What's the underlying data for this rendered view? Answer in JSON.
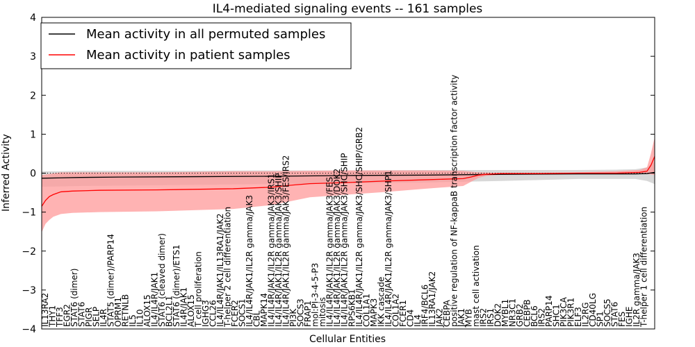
{
  "chart_data": {
    "type": "line",
    "title": "IL4-mediated signaling events -- 161 samples",
    "xlabel": "Cellular Entities",
    "ylabel": "Inferred Activity",
    "ylim": [
      -4,
      4
    ],
    "yticks": [
      -4,
      -3,
      -2,
      -1,
      0,
      1,
      2,
      3,
      4
    ],
    "legend": {
      "position": "top-left",
      "entries": [
        {
          "label": "Mean activity in all permuted samples",
          "color": "#000000"
        },
        {
          "label": "Mean activity in patient samples",
          "color": "#ff0000"
        }
      ]
    },
    "colors": {
      "permuted_line": "#000000",
      "permuted_band": "#c8c8c8",
      "patient_line": "#ff0000",
      "patient_band": "#ff9999",
      "zero_line": "#000000"
    },
    "n_points": 161,
    "category_labels": [
      "IL13RA2",
      "THY1",
      "TFF3",
      "EGR2",
      "STAT6 (dimer)",
      "STAT6",
      "PIGR",
      "SELP",
      "IL4R",
      "STAT5 (dimer)/PARP14",
      "OPRM1",
      "RETNLB",
      "IL5",
      "IL10",
      "ALOX15",
      "IL4/IL4R/JAK1",
      "STAT6 (cleaved dimer)",
      "BCL2L1",
      "STAT6 (dimer)/ETS1",
      "IL4R/JAK1",
      "ALOX15",
      "T cell proliferation",
      "IGHG3",
      "CCL26",
      "IL4/IL4R/JAK1/IL13RA1/JAK2",
      "T-helper 2 cell differentiation",
      "FCER2",
      "SOCS1",
      "IL4/IL4R/JAK1/IL2R gamma/JAK3",
      "CBL",
      "MAPK14",
      "IL4/IL4R/JAK1/IL2R gamma/JAK3/IRS1",
      "IL4/IL4R/JAK1/IL2R gamma/JAK3/SHIP",
      "IL4/IL4R/JAK1/IL2R gamma/JAK3/FES/IRS2",
      "PI3K",
      "SOCS3",
      "FRAP1",
      "mol:PI-3-4-5-P3",
      "mitosis",
      "IL4/IL4R/JAK1/IL2R gamma/JAK3/FES",
      "IL4/IL4R/JAK1/IL2R gamma/JAK3/DOK2",
      "IL4/IL4R/JAK1/IL2R gamma/JAK3/SHC/SHIP",
      "RPS6KB1",
      "IL4/IL4R/JAK1/IL2R gamma/JAK3/SHC/SHIP/GRB2",
      "COL1A1",
      "MAPK3",
      "IKK cascade",
      "IL4/IL4R/JAK1/IL2R gamma/JAK3/SHP1",
      "COL1A2",
      "FCER1",
      "CD4",
      "IL4",
      "IRF4/BCL6",
      "IL13RA1/JAK2",
      "JAK2",
      "CEBPA",
      "positive regulation of NF-kappaB transcription factor activity",
      "JAK1",
      "MYB",
      "mast cell activation",
      "IRS2",
      "IRS1",
      "DOK2",
      "MYBL1",
      "NR3C1",
      "GRB2",
      "CEBPB",
      "BCL6",
      "IRS2",
      "PARP14",
      "SHC1",
      "PIK3CA",
      "PIK3R1",
      "ELF3",
      "IL2RG",
      "CD40LG",
      "SP1",
      "SOCS5",
      "STAT6",
      "FES",
      "IGHE",
      "IL2R gamma/JAK3",
      "T-helper 1 cell differentiation"
    ],
    "series": [
      {
        "name": "Mean activity in all permuted samples",
        "mean": {
          "x": [
            0,
            5,
            10,
            20,
            40,
            60,
            80,
            100,
            120,
            140,
            150,
            155,
            158,
            160
          ],
          "y": [
            -0.13,
            -0.12,
            -0.11,
            -0.1,
            -0.09,
            -0.08,
            -0.06,
            -0.05,
            -0.03,
            -0.02,
            -0.02,
            -0.02,
            -0.01,
            0.02
          ]
        },
        "upper": {
          "x": [
            0,
            5,
            10,
            20,
            40,
            60,
            80,
            100,
            120,
            140,
            150,
            155,
            158,
            160
          ],
          "y": [
            0.05,
            0.05,
            0.06,
            0.06,
            0.06,
            0.07,
            0.07,
            0.08,
            0.08,
            0.08,
            0.09,
            0.1,
            0.15,
            0.3
          ]
        },
        "lower": {
          "x": [
            0,
            5,
            10,
            20,
            40,
            60,
            80,
            100,
            120,
            140,
            150,
            155,
            158,
            160
          ],
          "y": [
            -0.35,
            -0.34,
            -0.33,
            -0.32,
            -0.3,
            -0.28,
            -0.26,
            -0.24,
            -0.2,
            -0.15,
            -0.15,
            -0.15,
            -0.2,
            -0.28
          ]
        }
      },
      {
        "name": "Mean activity in patient samples",
        "mean": {
          "x": [
            0,
            1,
            2,
            3,
            5,
            8,
            15,
            30,
            50,
            60,
            65,
            70,
            80,
            90,
            100,
            110,
            112,
            114,
            116,
            118,
            120,
            130,
            140,
            150,
            156,
            158,
            159,
            160
          ],
          "y": [
            -0.85,
            -0.7,
            -0.6,
            -0.55,
            -0.48,
            -0.46,
            -0.44,
            -0.43,
            -0.4,
            -0.36,
            -0.31,
            -0.27,
            -0.24,
            -0.2,
            -0.17,
            -0.14,
            -0.1,
            -0.05,
            -0.03,
            -0.02,
            -0.01,
            -0.01,
            0.0,
            0.0,
            0.02,
            0.05,
            0.2,
            0.43
          ]
        },
        "upper": {
          "x": [
            0,
            5,
            30,
            50,
            60,
            70,
            80,
            90,
            100,
            110,
            114,
            120,
            130,
            140,
            150,
            156,
            158,
            159,
            160
          ],
          "y": [
            -0.05,
            0.02,
            0.02,
            0.05,
            0.05,
            0.06,
            0.07,
            0.07,
            0.07,
            0.06,
            0.02,
            0.01,
            0.01,
            0.02,
            0.05,
            0.08,
            0.15,
            0.5,
            0.92
          ]
        },
        "lower": {
          "x": [
            0,
            1,
            2,
            3,
            5,
            8,
            15,
            30,
            50,
            60,
            65,
            70,
            80,
            90,
            100,
            110,
            114,
            116,
            120,
            130,
            140,
            150,
            158,
            160
          ],
          "y": [
            -1.52,
            -1.3,
            -1.2,
            -1.12,
            -1.05,
            -1.02,
            -1.0,
            -0.98,
            -0.92,
            -0.82,
            -0.72,
            -0.62,
            -0.55,
            -0.48,
            -0.4,
            -0.33,
            -0.12,
            -0.07,
            -0.04,
            -0.03,
            -0.02,
            -0.03,
            -0.02,
            -0.05
          ]
        }
      }
    ]
  }
}
